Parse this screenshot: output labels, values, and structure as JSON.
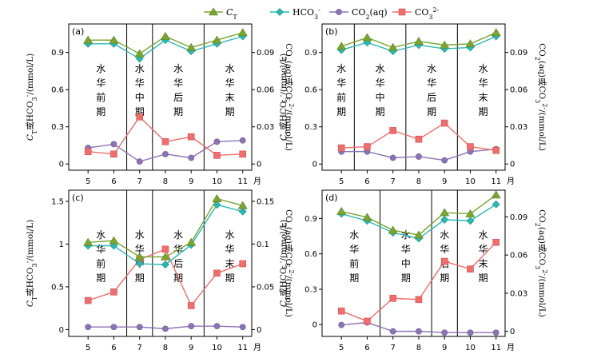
{
  "legend": [
    {
      "key": "CT",
      "label": "C",
      "sub": "T",
      "color": "#7aa531",
      "marker": "triangle"
    },
    {
      "key": "HCO3",
      "label": "HCO",
      "sub": "3",
      "sup": "-",
      "color": "#2bb8b2",
      "marker": "diamond"
    },
    {
      "key": "CO2",
      "label": "CO",
      "sub": "2",
      "tail": "(aq)",
      "color": "#8c73b3",
      "marker": "circle"
    },
    {
      "key": "CO3",
      "label": "CO",
      "sub": "3",
      "sup": "2-",
      "color": "#ee6e6e",
      "marker": "square"
    }
  ],
  "month_unit": "月",
  "left_axis_label": "C_T或HCO_3^-/(mmol/L)",
  "right_axis_label": "CO_2(aq)或CO_3^{2-}/(mmol/L)",
  "chart_data": [
    {
      "type": "line",
      "panel": "(a)",
      "x": [
        5,
        6,
        7,
        8,
        9,
        10,
        11
      ],
      "left_ylim": [
        -0.05,
        1.13
      ],
      "left_ticks": [
        0,
        0.3,
        0.6,
        0.9
      ],
      "right_ylim": [
        -0.005,
        0.113
      ],
      "right_ticks": [
        0,
        0.03,
        0.06,
        0.09
      ],
      "phase_dividers": [
        6.5,
        7.5,
        9.5
      ],
      "phases": [
        {
          "label": "水华前期",
          "x": 5.5
        },
        {
          "label": "水华中期",
          "x": 7.0
        },
        {
          "label": "水华后期",
          "x": 8.5
        },
        {
          "label": "水华末期",
          "x": 10.5
        }
      ],
      "series": [
        {
          "name": "CT",
          "axis": "left",
          "values": [
            1.0,
            1.0,
            0.89,
            1.03,
            0.94,
            1.0,
            1.06
          ]
        },
        {
          "name": "HCO3",
          "axis": "left",
          "values": [
            0.97,
            0.97,
            0.85,
            1.0,
            0.91,
            0.97,
            1.03
          ]
        },
        {
          "name": "CO2",
          "axis": "right",
          "values": [
            0.013,
            0.016,
            0.002,
            0.008,
            0.005,
            0.018,
            0.019
          ]
        },
        {
          "name": "CO3",
          "axis": "right",
          "values": [
            0.01,
            0.008,
            0.038,
            0.018,
            0.022,
            0.007,
            0.008
          ]
        }
      ]
    },
    {
      "type": "line",
      "panel": "(b)",
      "x": [
        5,
        6,
        7,
        8,
        9,
        10,
        11
      ],
      "left_ylim": [
        -0.05,
        1.13
      ],
      "left_ticks": [
        0,
        0.3,
        0.6,
        0.9
      ],
      "right_ylim": [
        -0.005,
        0.113
      ],
      "right_ticks": [
        0,
        0.03,
        0.06,
        0.09
      ],
      "phase_dividers": [
        5.5,
        7.5,
        9.5
      ],
      "phases": [
        {
          "label": "水华前期",
          "x": 5.0
        },
        {
          "label": "水华中期",
          "x": 6.5
        },
        {
          "label": "水华后期",
          "x": 8.5
        },
        {
          "label": "水华末期",
          "x": 10.5
        }
      ],
      "series": [
        {
          "name": "CT",
          "axis": "left",
          "values": [
            0.95,
            1.02,
            0.94,
            0.99,
            0.96,
            0.97,
            1.06
          ]
        },
        {
          "name": "HCO3",
          "axis": "left",
          "values": [
            0.92,
            0.98,
            0.91,
            0.96,
            0.93,
            0.94,
            1.03
          ]
        },
        {
          "name": "CO2",
          "axis": "right",
          "values": [
            0.01,
            0.01,
            0.005,
            0.006,
            0.003,
            0.01,
            0.012
          ]
        },
        {
          "name": "CO3",
          "axis": "right",
          "values": [
            0.013,
            0.014,
            0.027,
            0.02,
            0.033,
            0.014,
            0.011
          ]
        }
      ]
    },
    {
      "type": "line",
      "panel": "(c)",
      "x": [
        5,
        6,
        7,
        8,
        9,
        10,
        11
      ],
      "left_ylim": [
        -0.08,
        1.63
      ],
      "left_ticks": [
        0,
        0.5,
        1.0,
        1.5
      ],
      "right_ylim": [
        -0.008,
        0.163
      ],
      "right_ticks": [
        0,
        0.05,
        0.1,
        0.15
      ],
      "phase_dividers": [
        6.5,
        7.5,
        9.5
      ],
      "phases": [
        {
          "label": "水华前期",
          "x": 5.5
        },
        {
          "label": "水华中期",
          "x": 7.0
        },
        {
          "label": "水华后期",
          "x": 8.5
        },
        {
          "label": "水华末期",
          "x": 10.5
        }
      ],
      "series": [
        {
          "name": "CT",
          "axis": "left",
          "values": [
            1.02,
            1.04,
            0.85,
            0.85,
            1.02,
            1.53,
            1.45
          ]
        },
        {
          "name": "HCO3",
          "axis": "left",
          "values": [
            0.98,
            0.98,
            0.77,
            0.76,
            0.99,
            1.46,
            1.38
          ]
        },
        {
          "name": "CO2",
          "axis": "right",
          "values": [
            0.003,
            0.003,
            0.003,
            0.001,
            0.004,
            0.004,
            0.003
          ]
        },
        {
          "name": "CO3",
          "axis": "right",
          "values": [
            0.034,
            0.044,
            0.082,
            0.094,
            0.028,
            0.066,
            0.077
          ]
        }
      ]
    },
    {
      "type": "line",
      "panel": "(d)",
      "x": [
        5,
        6,
        7,
        8,
        9,
        10,
        11
      ],
      "left_ylim": [
        -0.1,
        1.14
      ],
      "left_ticks": [
        0,
        0.3,
        0.6,
        0.9
      ],
      "right_ylim": [
        -0.004,
        0.111
      ],
      "right_ticks": [
        0,
        0.03,
        0.06,
        0.09
      ],
      "phase_dividers": [
        6.5,
        8.5,
        9.5
      ],
      "phases": [
        {
          "label": "水华前期",
          "x": 5.5
        },
        {
          "label": "水华中期",
          "x": 7.5
        },
        {
          "label": "水华后期",
          "x": 9.0
        },
        {
          "label": "水华末期",
          "x": 10.5
        }
      ],
      "series": [
        {
          "name": "CT",
          "axis": "left",
          "values": [
            0.96,
            0.91,
            0.8,
            0.76,
            0.95,
            0.94,
            1.1
          ]
        },
        {
          "name": "HCO3",
          "axis": "left",
          "values": [
            0.94,
            0.88,
            0.78,
            0.73,
            0.89,
            0.88,
            1.02
          ]
        },
        {
          "name": "CO2",
          "axis": "right",
          "values": [
            0.005,
            0.007,
            0.0,
            0.0,
            -0.001,
            -0.001,
            -0.001
          ]
        },
        {
          "name": "CO3",
          "axis": "right",
          "values": [
            0.016,
            0.008,
            0.026,
            0.025,
            0.055,
            0.049,
            0.07
          ]
        }
      ]
    }
  ]
}
